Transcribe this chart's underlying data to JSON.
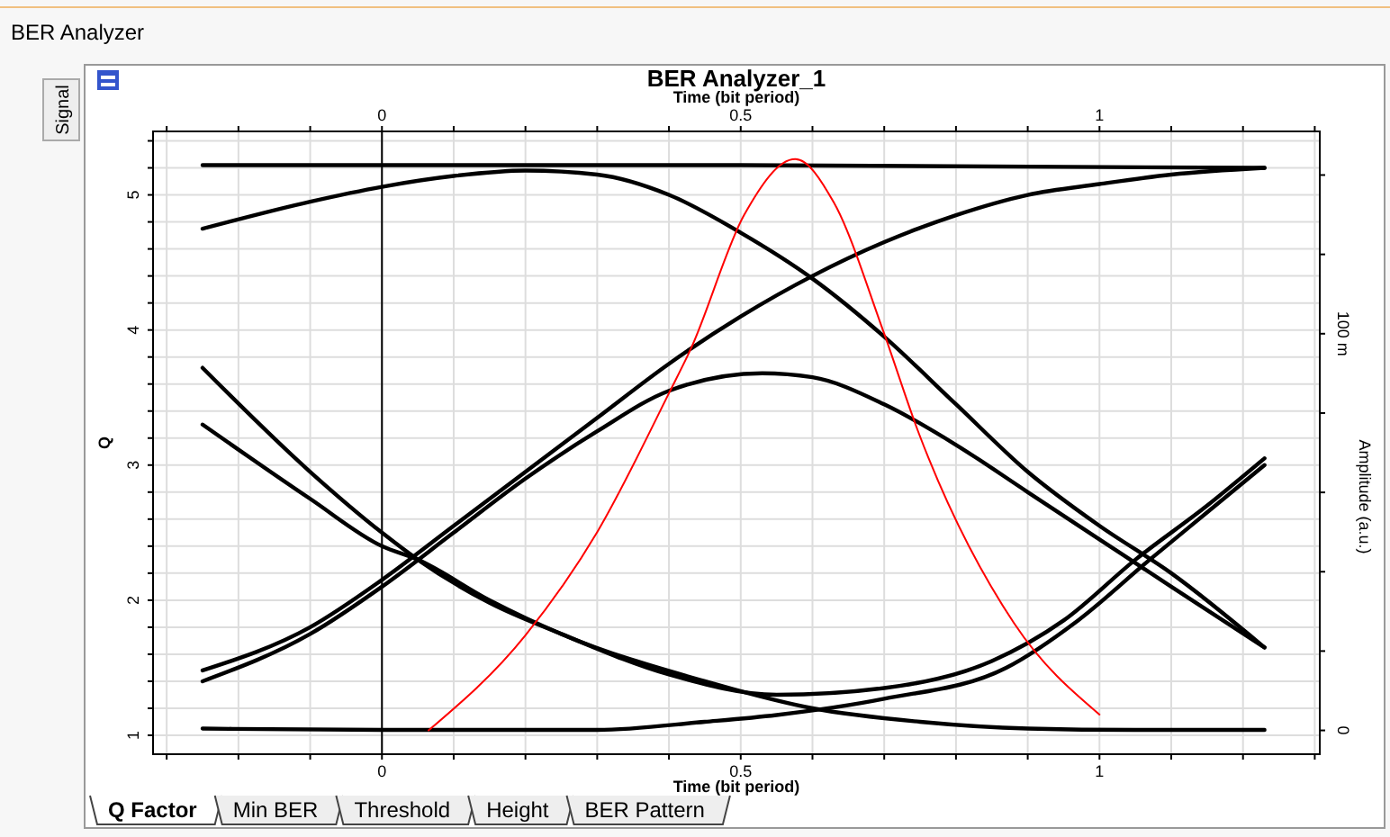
{
  "chart_data": {
    "type": "line",
    "title": "BER Analyzer_1",
    "xlabel": "Time (bit period)",
    "x2label": "Time (bit period)",
    "ylabel": "Q",
    "y2label": "Amplitude (a.u.)",
    "annotations": [
      "BER Analyzer",
      "Signal",
      "Q Factor",
      "Min BER",
      "Threshold",
      "Height",
      "BER Pattern"
    ],
    "xlim": [
      -0.319,
      1.307
    ],
    "xticks": [
      {
        "value": -0.3,
        "label": null
      },
      {
        "value": -0.2,
        "label": null
      },
      {
        "value": -0.1,
        "label": null
      },
      0,
      {
        "value": 0.1,
        "label": null
      },
      {
        "value": 0.2,
        "label": null
      },
      {
        "value": 0.3,
        "label": null
      },
      {
        "value": 0.4,
        "label": null
      },
      0.5,
      {
        "value": 0.6,
        "label": null
      },
      {
        "value": 0.7,
        "label": null
      },
      {
        "value": 0.8,
        "label": null
      },
      {
        "value": 0.9,
        "label": null
      },
      1,
      {
        "value": 1.1,
        "label": null
      },
      {
        "value": 1.2,
        "label": null
      },
      {
        "value": 1.3,
        "label": null
      }
    ],
    "x2lim": [
      -0.319,
      1.307
    ],
    "x2ticks": [
      {
        "value": -0.3,
        "label": null
      },
      {
        "value": -0.2,
        "label": null
      },
      {
        "value": -0.1,
        "label": null
      },
      0,
      {
        "value": 0.1,
        "label": null
      },
      {
        "value": 0.2,
        "label": null
      },
      {
        "value": 0.3,
        "label": null
      },
      {
        "value": 0.4,
        "label": null
      },
      0.5,
      {
        "value": 0.6,
        "label": null
      },
      {
        "value": 0.7,
        "label": null
      },
      {
        "value": 0.8,
        "label": null
      },
      {
        "value": 0.9,
        "label": null
      },
      1,
      {
        "value": 1.1,
        "label": null
      },
      {
        "value": 1.2,
        "label": null
      },
      {
        "value": 1.3,
        "label": null
      }
    ],
    "ylim": [
      0.86,
      5.47
    ],
    "yticks": [
      1,
      {
        "value": 1.2,
        "label": null
      },
      {
        "value": 1.4,
        "label": null
      },
      {
        "value": 1.6,
        "label": null
      },
      {
        "value": 1.8,
        "label": null
      },
      2,
      {
        "value": 2.2,
        "label": null
      },
      {
        "value": 2.4,
        "label": null
      },
      {
        "value": 2.6,
        "label": null
      },
      {
        "value": 2.8,
        "label": null
      },
      3,
      {
        "value": 3.2,
        "label": null
      },
      {
        "value": 3.4,
        "label": null
      },
      {
        "value": 3.6,
        "label": null
      },
      {
        "value": 3.8,
        "label": null
      },
      4,
      {
        "value": 4.2,
        "label": null
      },
      {
        "value": 4.4,
        "label": null
      },
      {
        "value": 4.6,
        "label": null
      },
      {
        "value": 4.8,
        "label": null
      },
      5,
      {
        "value": 5.2,
        "label": null
      },
      {
        "value": 5.4,
        "label": null
      }
    ],
    "y2lim": [
      -6,
      151
    ],
    "y2ticks": [
      0,
      {
        "value": 20,
        "label": null
      },
      {
        "value": 40,
        "label": null
      },
      {
        "value": 60,
        "label": null
      },
      {
        "value": 80,
        "label": null
      },
      {
        "value": 100,
        "label": "100 m"
      },
      {
        "value": 120,
        "label": null
      },
      {
        "value": 140,
        "label": null
      }
    ],
    "grid": true,
    "marker": "none",
    "line_style": "solid",
    "series": [
      {
        "color": "#000000",
        "x": [
          -0.25,
          0.5,
          1.23
        ],
        "values": [
          5.22,
          5.22,
          5.2
        ]
      },
      {
        "color": "#000000",
        "x": [
          -0.25,
          -0.1,
          0,
          0.1,
          0.2,
          0.3,
          0.4,
          0.5,
          0.6,
          0.7,
          0.8,
          0.9,
          1.0,
          1.1,
          1.23
        ],
        "values": [
          4.75,
          4.95,
          5.06,
          5.14,
          5.18,
          5.15,
          5.0,
          4.72,
          4.38,
          3.95,
          3.45,
          2.95,
          2.55,
          2.2,
          1.65
        ]
      },
      {
        "color": "#000000",
        "x": [
          -0.25,
          -0.1,
          0,
          0.1,
          0.2,
          0.3,
          0.4,
          0.5,
          0.6,
          0.7,
          0.8,
          0.9,
          1.0,
          1.1,
          1.23
        ],
        "values": [
          1.48,
          1.8,
          2.15,
          2.55,
          2.95,
          3.35,
          3.75,
          4.1,
          4.4,
          4.65,
          4.85,
          5.0,
          5.08,
          5.15,
          5.2
        ]
      },
      {
        "color": "#000000",
        "x": [
          -0.25,
          -0.1,
          0,
          0.1,
          0.2,
          0.3,
          0.4,
          0.53,
          0.6,
          0.7,
          0.8,
          0.9,
          1.0,
          1.1,
          1.23
        ],
        "values": [
          1.4,
          1.75,
          2.1,
          2.5,
          2.9,
          3.25,
          3.55,
          3.68,
          3.65,
          3.45,
          3.15,
          2.8,
          2.45,
          2.1,
          1.65
        ]
      },
      {
        "color": "#000000",
        "x": [
          -0.25,
          -0.1,
          0,
          0.05,
          0.15,
          0.25,
          0.4,
          0.55,
          0.7,
          0.85,
          0.95,
          1.05,
          1.15,
          1.23
        ],
        "values": [
          3.72,
          2.95,
          2.5,
          2.3,
          1.98,
          1.75,
          1.45,
          1.3,
          1.35,
          1.55,
          1.85,
          2.3,
          2.7,
          3.05
        ]
      },
      {
        "color": "#000000",
        "x": [
          -0.25,
          -0.1,
          0,
          0.05,
          0.15,
          0.25,
          0.45,
          0.6,
          0.75,
          0.9,
          1.05,
          1.23
        ],
        "values": [
          3.3,
          2.75,
          2.4,
          2.3,
          2.0,
          1.75,
          1.4,
          1.2,
          1.1,
          1.05,
          1.04,
          1.04
        ]
      },
      {
        "color": "#000000",
        "x": [
          -0.25,
          0,
          0.3,
          0.45,
          0.55,
          0.7,
          0.87,
          0.97,
          1.07,
          1.15,
          1.23
        ],
        "values": [
          1.05,
          1.04,
          1.04,
          1.1,
          1.15,
          1.27,
          1.5,
          1.85,
          2.3,
          2.65,
          3.0
        ]
      },
      {
        "color": "#ff0000",
        "axis": "y2",
        "x": [
          0.065,
          0.2,
          0.3,
          0.4,
          0.43,
          0.505,
          0.576,
          0.63,
          0.698,
          0.748,
          0.881,
          1.0
        ],
        "values": [
          0,
          24,
          50,
          85,
          96,
          130,
          144,
          133,
          101,
          75,
          27,
          4
        ]
      }
    ]
  }
}
